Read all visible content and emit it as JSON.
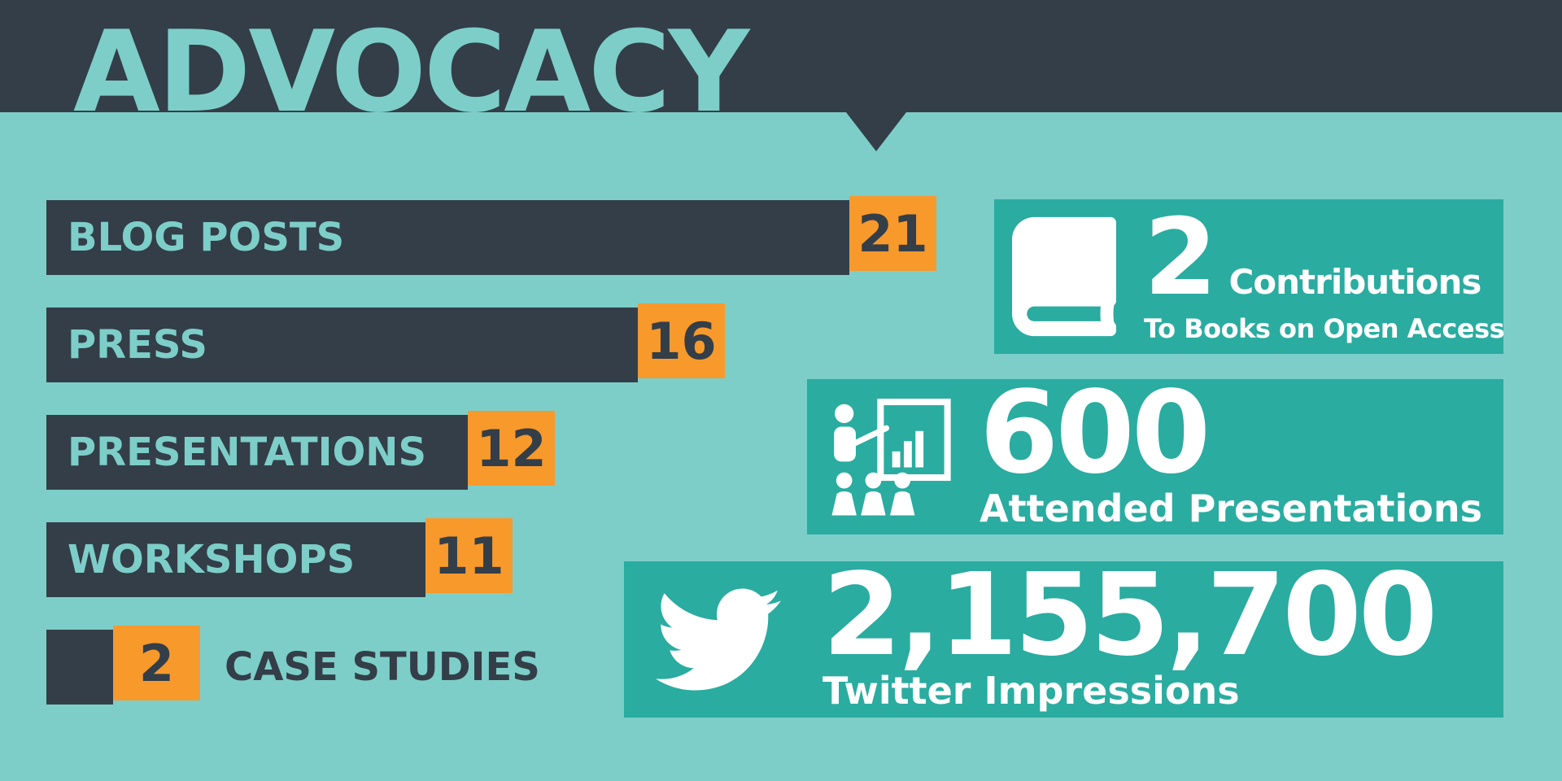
{
  "title": "ADVOCACY",
  "colors": {
    "background": "#7DCEC8",
    "header": "#333E48",
    "bar": "#333E48",
    "badge": "#F8992C",
    "panel": "#2AACA0",
    "title_text": "#7DCEC8",
    "bar_label": "#7DCEC8",
    "badge_text": "#333E48",
    "outside_label": "#333E48",
    "white": "#FFFFFF"
  },
  "chart_data": {
    "type": "bar",
    "orientation": "horizontal",
    "title": "ADVOCACY",
    "categories": [
      "BLOG POSTS",
      "PRESS",
      "PRESENTATIONS",
      "WORKSHOPS",
      "CASE STUDIES"
    ],
    "values": [
      21,
      16,
      12,
      11,
      2
    ],
    "value_labels": "orange badge at end of each bar",
    "xlim": [
      0,
      21
    ],
    "items": [
      {
        "label": "BLOG POSTS",
        "value": 21,
        "label_position": "inside"
      },
      {
        "label": "PRESS",
        "value": 16,
        "label_position": "inside"
      },
      {
        "label": "PRESENTATIONS",
        "value": 12,
        "label_position": "inside"
      },
      {
        "label": "WORKSHOPS",
        "value": 11,
        "label_position": "inside"
      },
      {
        "label": "CASE STUDIES",
        "value": 2,
        "label_position": "outside"
      }
    ]
  },
  "stats": [
    {
      "icon": "book-icon",
      "value": "2",
      "label": "Contributions",
      "sublabel": "To Books on Open Access"
    },
    {
      "icon": "presentation-icon",
      "value": "600",
      "label": "Attended Presentations"
    },
    {
      "icon": "twitter-icon",
      "value": "2,155,700",
      "label": "Twitter Impressions"
    }
  ]
}
